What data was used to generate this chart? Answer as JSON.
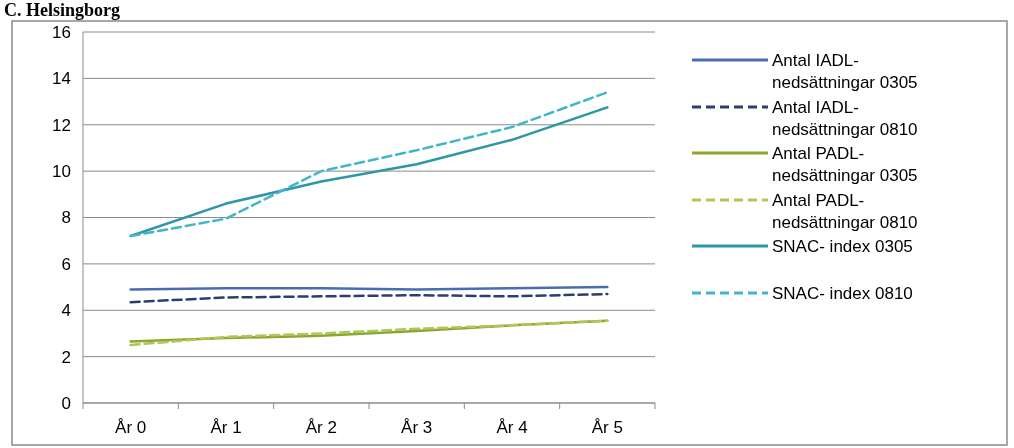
{
  "chart_data": {
    "type": "line",
    "title": "C. Helsingborg",
    "categories": [
      "År 0",
      "År 1",
      "År 2",
      "År 3",
      "År 4",
      "År 5"
    ],
    "series": [
      {
        "name": "Antal IADL-nedsättningar 0305",
        "color": "#4a6db0",
        "line_style": "solid",
        "values": [
          4.9,
          4.95,
          4.95,
          4.9,
          4.95,
          5.0
        ]
      },
      {
        "name": "Antal IADL-nedsättningar 0810",
        "color": "#2b3f6e",
        "line_style": "dashed",
        "values": [
          4.35,
          4.55,
          4.6,
          4.65,
          4.6,
          4.7
        ]
      },
      {
        "name": "Antal PADL-nedsättningar 0305",
        "color": "#8aa82e",
        "line_style": "solid",
        "values": [
          2.65,
          2.8,
          2.9,
          3.1,
          3.35,
          3.55
        ]
      },
      {
        "name": "Antal PADL-nedsättningar 0810",
        "color": "#b0c65a",
        "line_style": "dashed",
        "values": [
          2.5,
          2.85,
          3.0,
          3.2,
          3.35,
          3.55
        ]
      },
      {
        "name": "SNAC- index 0305",
        "color": "#2e96a6",
        "line_style": "solid",
        "values": [
          7.2,
          8.6,
          9.55,
          10.3,
          11.35,
          12.75
        ]
      },
      {
        "name": "SNAC- index 0810",
        "color": "#40b6c6",
        "line_style": "dashed",
        "values": [
          7.2,
          7.95,
          10.0,
          10.9,
          11.9,
          13.4
        ]
      }
    ],
    "ylim": [
      0,
      16
    ],
    "yticks": [
      0,
      2,
      4,
      6,
      8,
      10,
      12,
      14,
      16
    ],
    "grid": "y",
    "legend": "right",
    "marker": "none"
  }
}
